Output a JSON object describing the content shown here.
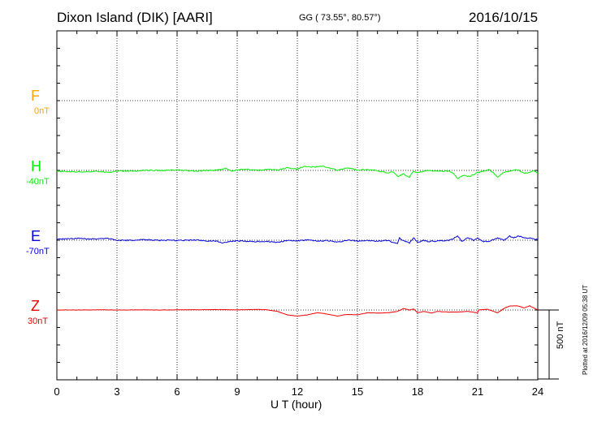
{
  "header": {
    "station": "Dixon Island (DIK)  [AARI]",
    "coords": "GG ( 73.55°,  80.57°)",
    "date": "2016/10/15"
  },
  "footnote": "Plotted at 2016/12/09 05:38 UT",
  "colors": {
    "F": "#ffa500",
    "H": "#00ee00",
    "E": "#0000dd",
    "Z": "#ee0000",
    "grid": "#000000"
  },
  "chart_data": {
    "type": "line",
    "xlabel": "U T (hour)",
    "xlim": [
      0,
      24
    ],
    "x_ticks": [
      "0",
      "3",
      "6",
      "9",
      "12",
      "15",
      "18",
      "21",
      "24"
    ],
    "scale_bar": {
      "label": "500 nT",
      "value_nT": 500
    },
    "components": [
      {
        "letter": "F",
        "baseline": "0nT",
        "color": "#ffa500",
        "values": []
      },
      {
        "letter": "H",
        "baseline": "-40nT",
        "color": "#00ee00",
        "x": [
          0,
          1,
          2,
          2.7,
          3,
          4,
          4.3,
          5,
          6,
          7,
          7.5,
          8,
          8.5,
          8.7,
          9,
          9.3,
          10,
          10.5,
          11,
          11.5,
          12,
          12.3,
          12.8,
          13.3,
          13.8,
          14,
          14.5,
          15,
          15.5,
          16,
          16.5,
          16.8,
          17,
          17.3,
          17.6,
          17.8,
          18,
          18.5,
          19,
          19.5,
          19.8,
          20,
          20.3,
          20.6,
          21,
          21.3,
          21.6,
          21.8,
          22,
          22.3,
          22.6,
          22.8,
          23,
          23.3,
          23.6,
          23.8,
          24
        ],
        "values": [
          -47,
          -50,
          -47,
          -52,
          -44,
          -45,
          -38,
          -41,
          -38,
          -46,
          -40,
          -38,
          -25,
          -47,
          -35,
          -30,
          -40,
          -32,
          -38,
          -20,
          -30,
          -12,
          -15,
          -10,
          -30,
          -40,
          -20,
          -38,
          -35,
          -40,
          -60,
          -50,
          -85,
          -65,
          -90,
          -45,
          -55,
          -40,
          -45,
          -45,
          -60,
          -100,
          -75,
          -85,
          -55,
          -45,
          -35,
          -60,
          -90,
          -55,
          -45,
          -40,
          -35,
          -60,
          -55,
          -40,
          -65
        ]
      },
      {
        "letter": "E",
        "baseline": "-70nT",
        "color": "#0000dd",
        "x": [
          0,
          1,
          2,
          2.5,
          3,
          4,
          4.3,
          5,
          6,
          7,
          7.5,
          8,
          8.2,
          9,
          10,
          10.5,
          11,
          11.5,
          12,
          12.5,
          13,
          13.5,
          14,
          14.5,
          15,
          15.5,
          16,
          16.5,
          17,
          17.1,
          17.3,
          17.6,
          17.8,
          18,
          18.3,
          18.5,
          19,
          19.5,
          19.8,
          20,
          20.2,
          20.5,
          20.8,
          21,
          21.3,
          21.6,
          22,
          22.3,
          22.6,
          22.8,
          23,
          23.3,
          23.6,
          24
        ],
        "values": [
          -63,
          -58,
          -60,
          -55,
          -70,
          -72,
          -65,
          -70,
          -72,
          -68,
          -75,
          -78,
          -88,
          -75,
          -80,
          -78,
          -85,
          -72,
          -75,
          -68,
          -78,
          -72,
          -85,
          -70,
          -75,
          -73,
          -78,
          -70,
          -95,
          -55,
          -75,
          -90,
          -50,
          -85,
          -70,
          -80,
          -75,
          -72,
          -60,
          -35,
          -80,
          -50,
          -70,
          -55,
          -80,
          -75,
          -55,
          -70,
          -40,
          -55,
          -40,
          -50,
          -55,
          -65
        ]
      },
      {
        "letter": "Z",
        "baseline": "30nT",
        "color": "#ee0000",
        "x": [
          0,
          1,
          2,
          3,
          4,
          5,
          6,
          7,
          8,
          9,
          10,
          10.5,
          11,
          11.5,
          12,
          12.5,
          13,
          13.3,
          13.7,
          14,
          14.3,
          14.5,
          15,
          15.5,
          16,
          16.5,
          17,
          17.3,
          17.6,
          17.8,
          18,
          18.3,
          18.7,
          19,
          19.5,
          20,
          20.5,
          21,
          21,
          21.5,
          22,
          22.3,
          22.6,
          23,
          23.3,
          23.6,
          24
        ],
        "values": [
          30,
          30,
          31,
          30,
          31,
          30,
          31,
          32,
          33,
          31,
          34,
          31,
          20,
          -5,
          -15,
          -5,
          10,
          5,
          -5,
          -15,
          -5,
          -2,
          -5,
          10,
          8,
          10,
          20,
          40,
          30,
          38,
          10,
          20,
          8,
          20,
          15,
          15,
          20,
          10,
          30,
          35,
          10,
          40,
          60,
          60,
          45,
          60,
          30
        ]
      }
    ]
  }
}
